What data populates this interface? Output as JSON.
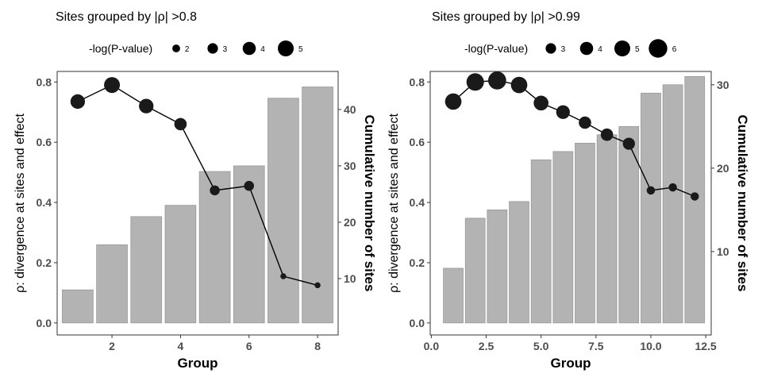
{
  "chart_data": [
    {
      "type": "bar+line",
      "title": "Sites grouped by |ρ| >0.8",
      "legend_title": "-log(P-value)",
      "legend_values": [
        2,
        3,
        4,
        5
      ],
      "legend_placement": "top",
      "xlabel": "Group",
      "ylabel": "ρ: divergence at sites and effect",
      "y2label": "Cumulative number of sites",
      "xlim": [
        0.4,
        8.6
      ],
      "ylim": [
        -0.04,
        0.835
      ],
      "y2lim": [
        0,
        46.75
      ],
      "xticks": [
        2,
        4,
        6,
        8
      ],
      "xtick_labels": [
        "2",
        "4",
        "6",
        "8"
      ],
      "yticks": [
        0.0,
        0.2,
        0.4,
        0.6,
        0.8
      ],
      "ytick_labels": [
        "0.0",
        "0.2",
        "0.4",
        "0.6",
        "0.8"
      ],
      "y2ticks": [
        10,
        20,
        30,
        40
      ],
      "y2tick_labels": [
        "10",
        "20",
        "30",
        "40"
      ],
      "groups": [
        1,
        2,
        3,
        4,
        5,
        6,
        7,
        8
      ],
      "bar_values": [
        8,
        16,
        21,
        23,
        29,
        30,
        42,
        44
      ],
      "rho_values": [
        0.735,
        0.79,
        0.72,
        0.66,
        0.44,
        0.455,
        0.155,
        0.125
      ],
      "neglog_pvalues": [
        4.5,
        5.0,
        4.5,
        3.7,
        2.8,
        2.8,
        1.3,
        1.3
      ],
      "grid": false,
      "colors": {
        "bar_fill": "#b3b3b3",
        "bar_stroke": "#999999",
        "line": "#000000",
        "point": "#1a1a1a"
      }
    },
    {
      "type": "bar+line",
      "title": "Sites grouped by |ρ| >0.99",
      "legend_title": "-log(P-value)",
      "legend_values": [
        3,
        4,
        5,
        6
      ],
      "legend_placement": "top",
      "xlabel": "Group",
      "ylabel": "ρ: divergence at sites and effect",
      "y2label": "Cumulative number of sites",
      "xlim": [
        -0.05,
        12.75
      ],
      "ylim": [
        -0.04,
        0.835
      ],
      "y2lim": [
        0,
        31.6
      ],
      "xticks": [
        0,
        2.5,
        5,
        7.5,
        10,
        12.5
      ],
      "xtick_labels": [
        "0.0",
        "2.5",
        "5.0",
        "7.5",
        "10.0",
        "12.5"
      ],
      "yticks": [
        0.0,
        0.2,
        0.4,
        0.6,
        0.8
      ],
      "ytick_labels": [
        "0.0",
        "0.2",
        "0.4",
        "0.6",
        "0.8"
      ],
      "y2ticks": [
        10,
        20,
        30
      ],
      "y2tick_labels": [
        "10",
        "20",
        "30"
      ],
      "groups": [
        1,
        2,
        3,
        4,
        5,
        6,
        7,
        8,
        9,
        10,
        11,
        12
      ],
      "bar_values": [
        8,
        14,
        15,
        16,
        21,
        22,
        23,
        24,
        25,
        29,
        30,
        31
      ],
      "rho_values": [
        0.735,
        0.8,
        0.805,
        0.79,
        0.73,
        0.7,
        0.665,
        0.625,
        0.595,
        0.44,
        0.45,
        0.42
      ],
      "neglog_pvalues": [
        5.2,
        5.6,
        5.8,
        5.2,
        4.6,
        4.2,
        3.7,
        3.7,
        3.6,
        2.2,
        2.2,
        2.2
      ],
      "grid": false,
      "colors": {
        "bar_fill": "#b3b3b3",
        "bar_stroke": "#999999",
        "line": "#000000",
        "point": "#1a1a1a"
      }
    }
  ]
}
